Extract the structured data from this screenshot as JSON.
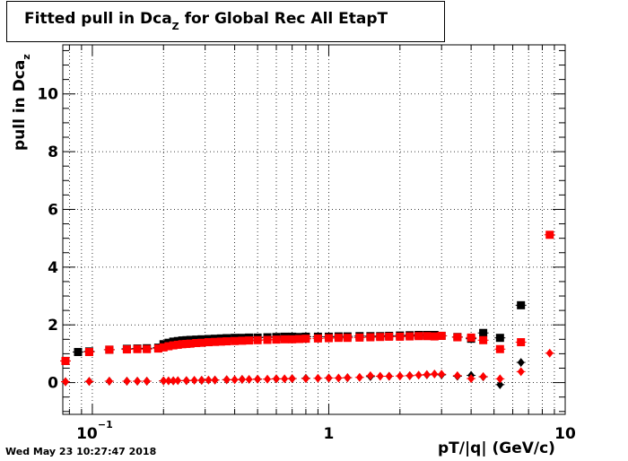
{
  "chart_data": {
    "type": "scatter",
    "title": "Fitted pull in Dca",
    "title_sub": "Z",
    "title_suffix": "for Global Rec All EtapT",
    "ylabel": "pull in Dca",
    "ylabel_sub": "z",
    "xlabel": "pT/|q| (GeV/c)",
    "xscale": "log",
    "xlim": [
      0.075,
      10
    ],
    "ylim": [
      -1.1,
      11.7
    ],
    "grid": true,
    "x_ticks": [
      {
        "value": 0.1,
        "label": "10",
        "exp": "−1"
      },
      {
        "value": 1,
        "label": "1",
        "exp": ""
      },
      {
        "value": 10,
        "label": "10",
        "exp": ""
      }
    ],
    "y_ticks": [
      0,
      2,
      4,
      6,
      8,
      10
    ],
    "series": [
      {
        "color": "#000000",
        "marker": "square",
        "points": [
          {
            "x": 0.077,
            "y": 0.75
          },
          {
            "x": 0.087,
            "y": 1.06
          },
          {
            "x": 0.097,
            "y": 1.08
          },
          {
            "x": 0.118,
            "y": 1.14
          },
          {
            "x": 0.14,
            "y": 1.17
          },
          {
            "x": 0.155,
            "y": 1.18
          },
          {
            "x": 0.17,
            "y": 1.19
          },
          {
            "x": 0.19,
            "y": 1.21
          },
          {
            "x": 0.2,
            "y": 1.33
          },
          {
            "x": 0.21,
            "y": 1.38
          },
          {
            "x": 0.22,
            "y": 1.42
          },
          {
            "x": 0.23,
            "y": 1.44
          },
          {
            "x": 0.24,
            "y": 1.46
          },
          {
            "x": 0.25,
            "y": 1.47
          },
          {
            "x": 0.26,
            "y": 1.48
          },
          {
            "x": 0.275,
            "y": 1.49
          },
          {
            "x": 0.29,
            "y": 1.5
          },
          {
            "x": 0.31,
            "y": 1.51
          },
          {
            "x": 0.33,
            "y": 1.52
          },
          {
            "x": 0.35,
            "y": 1.53
          },
          {
            "x": 0.37,
            "y": 1.54
          },
          {
            "x": 0.4,
            "y": 1.55
          },
          {
            "x": 0.43,
            "y": 1.55
          },
          {
            "x": 0.46,
            "y": 1.56
          },
          {
            "x": 0.5,
            "y": 1.56
          },
          {
            "x": 0.55,
            "y": 1.57
          },
          {
            "x": 0.6,
            "y": 1.58
          },
          {
            "x": 0.65,
            "y": 1.59
          },
          {
            "x": 0.7,
            "y": 1.59
          },
          {
            "x": 0.75,
            "y": 1.58
          },
          {
            "x": 0.8,
            "y": 1.59
          },
          {
            "x": 0.9,
            "y": 1.59
          },
          {
            "x": 1.0,
            "y": 1.59
          },
          {
            "x": 1.1,
            "y": 1.6
          },
          {
            "x": 1.2,
            "y": 1.6
          },
          {
            "x": 1.35,
            "y": 1.61
          },
          {
            "x": 1.5,
            "y": 1.61
          },
          {
            "x": 1.65,
            "y": 1.61
          },
          {
            "x": 1.8,
            "y": 1.62
          },
          {
            "x": 2.0,
            "y": 1.63
          },
          {
            "x": 2.2,
            "y": 1.64
          },
          {
            "x": 2.4,
            "y": 1.65
          },
          {
            "x": 2.6,
            "y": 1.65
          },
          {
            "x": 2.8,
            "y": 1.65
          },
          {
            "x": 3.0,
            "y": 1.62
          },
          {
            "x": 3.5,
            "y": 1.58
          },
          {
            "x": 4.0,
            "y": 1.52
          },
          {
            "x": 4.5,
            "y": 1.72
          },
          {
            "x": 5.3,
            "y": 1.55
          },
          {
            "x": 6.5,
            "y": 2.68
          }
        ]
      },
      {
        "color": "#ff0000",
        "marker": "square",
        "points": [
          {
            "x": 0.077,
            "y": 0.75
          },
          {
            "x": 0.097,
            "y": 1.06
          },
          {
            "x": 0.118,
            "y": 1.14
          },
          {
            "x": 0.14,
            "y": 1.15
          },
          {
            "x": 0.155,
            "y": 1.16
          },
          {
            "x": 0.17,
            "y": 1.16
          },
          {
            "x": 0.19,
            "y": 1.18
          },
          {
            "x": 0.2,
            "y": 1.22
          },
          {
            "x": 0.21,
            "y": 1.26
          },
          {
            "x": 0.22,
            "y": 1.29
          },
          {
            "x": 0.23,
            "y": 1.31
          },
          {
            "x": 0.24,
            "y": 1.33
          },
          {
            "x": 0.25,
            "y": 1.34
          },
          {
            "x": 0.26,
            "y": 1.35
          },
          {
            "x": 0.275,
            "y": 1.37
          },
          {
            "x": 0.29,
            "y": 1.38
          },
          {
            "x": 0.31,
            "y": 1.4
          },
          {
            "x": 0.33,
            "y": 1.41
          },
          {
            "x": 0.35,
            "y": 1.42
          },
          {
            "x": 0.37,
            "y": 1.43
          },
          {
            "x": 0.4,
            "y": 1.44
          },
          {
            "x": 0.43,
            "y": 1.45
          },
          {
            "x": 0.46,
            "y": 1.46
          },
          {
            "x": 0.5,
            "y": 1.47
          },
          {
            "x": 0.55,
            "y": 1.48
          },
          {
            "x": 0.6,
            "y": 1.49
          },
          {
            "x": 0.65,
            "y": 1.5
          },
          {
            "x": 0.7,
            "y": 1.5
          },
          {
            "x": 0.75,
            "y": 1.51
          },
          {
            "x": 0.8,
            "y": 1.52
          },
          {
            "x": 0.9,
            "y": 1.53
          },
          {
            "x": 1.0,
            "y": 1.54
          },
          {
            "x": 1.1,
            "y": 1.55
          },
          {
            "x": 1.2,
            "y": 1.55
          },
          {
            "x": 1.35,
            "y": 1.56
          },
          {
            "x": 1.5,
            "y": 1.57
          },
          {
            "x": 1.65,
            "y": 1.58
          },
          {
            "x": 1.8,
            "y": 1.59
          },
          {
            "x": 2.0,
            "y": 1.59
          },
          {
            "x": 2.2,
            "y": 1.6
          },
          {
            "x": 2.4,
            "y": 1.61
          },
          {
            "x": 2.6,
            "y": 1.61
          },
          {
            "x": 2.8,
            "y": 1.6
          },
          {
            "x": 3.0,
            "y": 1.62
          },
          {
            "x": 3.5,
            "y": 1.57
          },
          {
            "x": 4.0,
            "y": 1.56
          },
          {
            "x": 4.5,
            "y": 1.47
          },
          {
            "x": 5.3,
            "y": 1.16
          },
          {
            "x": 6.5,
            "y": 1.4
          },
          {
            "x": 8.6,
            "y": 5.12
          }
        ]
      },
      {
        "color": "#000000",
        "marker": "diamond",
        "points": [
          {
            "x": 0.077,
            "y": 0.03
          },
          {
            "x": 0.097,
            "y": 0.04
          },
          {
            "x": 0.118,
            "y": 0.05
          },
          {
            "x": 0.14,
            "y": 0.05
          },
          {
            "x": 0.155,
            "y": 0.05
          },
          {
            "x": 0.17,
            "y": 0.05
          },
          {
            "x": 0.2,
            "y": 0.06
          },
          {
            "x": 0.22,
            "y": 0.06
          },
          {
            "x": 0.25,
            "y": 0.07
          },
          {
            "x": 0.29,
            "y": 0.08
          },
          {
            "x": 0.33,
            "y": 0.09
          },
          {
            "x": 0.37,
            "y": 0.1
          },
          {
            "x": 0.43,
            "y": 0.11
          },
          {
            "x": 0.5,
            "y": 0.12
          },
          {
            "x": 0.6,
            "y": 0.13
          },
          {
            "x": 0.7,
            "y": 0.14
          },
          {
            "x": 0.8,
            "y": 0.15
          },
          {
            "x": 1.0,
            "y": 0.16
          },
          {
            "x": 1.2,
            "y": 0.17
          },
          {
            "x": 1.5,
            "y": 0.21
          },
          {
            "x": 1.8,
            "y": 0.22
          },
          {
            "x": 2.2,
            "y": 0.24
          },
          {
            "x": 2.6,
            "y": 0.27
          },
          {
            "x": 3.0,
            "y": 0.27
          },
          {
            "x": 3.5,
            "y": 0.22
          },
          {
            "x": 4.0,
            "y": 0.25
          },
          {
            "x": 4.5,
            "y": 0.2
          },
          {
            "x": 5.3,
            "y": -0.07
          },
          {
            "x": 6.5,
            "y": 0.7
          }
        ]
      },
      {
        "color": "#ff0000",
        "marker": "diamond",
        "points": [
          {
            "x": 0.077,
            "y": 0.03
          },
          {
            "x": 0.097,
            "y": 0.04
          },
          {
            "x": 0.118,
            "y": 0.05
          },
          {
            "x": 0.14,
            "y": 0.05
          },
          {
            "x": 0.155,
            "y": 0.05
          },
          {
            "x": 0.17,
            "y": 0.05
          },
          {
            "x": 0.2,
            "y": 0.06
          },
          {
            "x": 0.21,
            "y": 0.06
          },
          {
            "x": 0.22,
            "y": 0.06
          },
          {
            "x": 0.23,
            "y": 0.07
          },
          {
            "x": 0.25,
            "y": 0.07
          },
          {
            "x": 0.27,
            "y": 0.08
          },
          {
            "x": 0.29,
            "y": 0.08
          },
          {
            "x": 0.31,
            "y": 0.09
          },
          {
            "x": 0.33,
            "y": 0.09
          },
          {
            "x": 0.37,
            "y": 0.1
          },
          {
            "x": 0.4,
            "y": 0.1
          },
          {
            "x": 0.43,
            "y": 0.11
          },
          {
            "x": 0.46,
            "y": 0.11
          },
          {
            "x": 0.5,
            "y": 0.12
          },
          {
            "x": 0.55,
            "y": 0.12
          },
          {
            "x": 0.6,
            "y": 0.13
          },
          {
            "x": 0.65,
            "y": 0.13
          },
          {
            "x": 0.7,
            "y": 0.14
          },
          {
            "x": 0.8,
            "y": 0.14
          },
          {
            "x": 0.9,
            "y": 0.15
          },
          {
            "x": 1.0,
            "y": 0.16
          },
          {
            "x": 1.1,
            "y": 0.16
          },
          {
            "x": 1.2,
            "y": 0.17
          },
          {
            "x": 1.35,
            "y": 0.18
          },
          {
            "x": 1.5,
            "y": 0.24
          },
          {
            "x": 1.65,
            "y": 0.22
          },
          {
            "x": 1.8,
            "y": 0.22
          },
          {
            "x": 2.0,
            "y": 0.23
          },
          {
            "x": 2.2,
            "y": 0.24
          },
          {
            "x": 2.4,
            "y": 0.26
          },
          {
            "x": 2.6,
            "y": 0.28
          },
          {
            "x": 2.8,
            "y": 0.3
          },
          {
            "x": 3.0,
            "y": 0.29
          },
          {
            "x": 3.5,
            "y": 0.24
          },
          {
            "x": 4.0,
            "y": 0.14
          },
          {
            "x": 4.5,
            "y": 0.21
          },
          {
            "x": 5.3,
            "y": 0.13
          },
          {
            "x": 6.5,
            "y": 0.38
          },
          {
            "x": 8.6,
            "y": 1.02
          }
        ]
      }
    ]
  },
  "footer": {
    "timestamp": "Wed May 23 10:27:47 2018"
  }
}
